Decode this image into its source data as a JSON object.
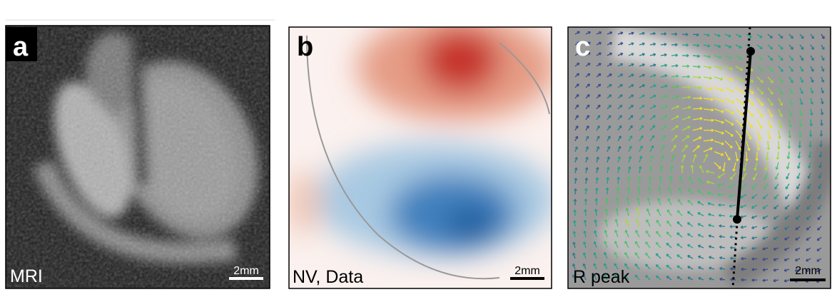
{
  "panels": [
    {
      "letter": "a",
      "label": "MRI",
      "scale": "2mm"
    },
    {
      "letter": "b",
      "label": "NV, Data",
      "scale": "2mm"
    },
    {
      "letter": "c",
      "label": "R peak",
      "scale": "2mm"
    }
  ]
}
